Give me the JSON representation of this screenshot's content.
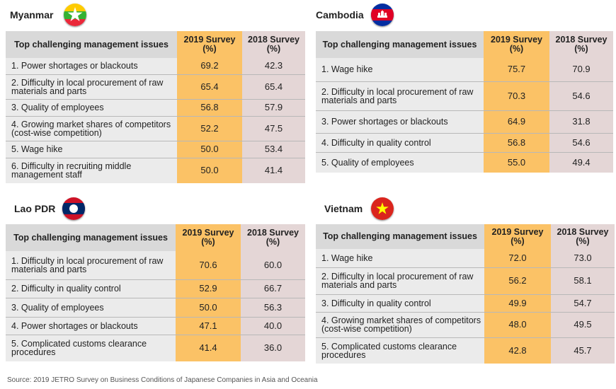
{
  "headers": {
    "issue": "Top challenging management issues",
    "y2019": "2019 Survey\n(%)",
    "y2018": "2018 Survey\n(%)"
  },
  "source": "Source: 2019 JETRO Survey on Business Conditions of Japanese Companies in Asia and Oceania",
  "flag_colors": {
    "myanmar": [
      "#fecb00",
      "#34b233",
      "#ea2839",
      "#ffffff"
    ],
    "cambodia": [
      "#032ea1",
      "#e00025",
      "#ffffff"
    ],
    "laos": [
      "#ce1126",
      "#002868",
      "#ffffff"
    ],
    "vietnam": [
      "#da251d",
      "#ffff00"
    ]
  },
  "chart_data": [
    {
      "type": "table",
      "title": "Myanmar",
      "columns": [
        "Top challenging management issues",
        "2019 Survey (%)",
        "2018 Survey (%)"
      ],
      "rows": [
        [
          "1. Power shortages or blackouts",
          "69.2",
          "42.3"
        ],
        [
          "2. Difficulty in local procurement of raw materials and parts",
          "65.4",
          "65.4"
        ],
        [
          "3. Quality of employees",
          "56.8",
          "57.9"
        ],
        [
          "4. Growing market shares of competitors (cost-wise competition)",
          "52.2",
          "47.5"
        ],
        [
          "5. Wage hike",
          "50.0",
          "53.4"
        ],
        [
          "6. Difficulty in recruiting middle management staff",
          "50.0",
          "41.4"
        ]
      ]
    },
    {
      "type": "table",
      "title": "Cambodia",
      "columns": [
        "Top challenging management issues",
        "2019 Survey (%)",
        "2018 Survey (%)"
      ],
      "rows": [
        [
          "1. Wage hike",
          "75.7",
          "70.9"
        ],
        [
          "2. Difficulty in local procurement of raw materials and parts",
          "70.3",
          "54.6"
        ],
        [
          "3. Power shortages or blackouts",
          "64.9",
          "31.8"
        ],
        [
          "4. Difficulty in quality control",
          "56.8",
          "54.6"
        ],
        [
          "5. Quality of employees",
          "55.0",
          "49.4"
        ]
      ]
    },
    {
      "type": "table",
      "title": "Lao PDR",
      "columns": [
        "Top challenging management issues",
        "2019 Survey (%)",
        "2018 Survey (%)"
      ],
      "rows": [
        [
          "1. Difficulty in local procurement of raw materials and parts",
          "70.6",
          "60.0"
        ],
        [
          "2. Difficulty in quality control",
          "52.9",
          "66.7"
        ],
        [
          "3. Quality of employees",
          "50.0",
          "56.3"
        ],
        [
          "4. Power shortages or blackouts",
          "47.1",
          "40.0"
        ],
        [
          "5. Complicated customs clearance procedures",
          "41.4",
          "36.0"
        ]
      ]
    },
    {
      "type": "table",
      "title": "Vietnam",
      "columns": [
        "Top challenging management issues",
        "2019 Survey (%)",
        "2018 Survey (%)"
      ],
      "rows": [
        [
          "1. Wage hike",
          "72.0",
          "73.0"
        ],
        [
          "2. Difficulty in local procurement of raw materials and parts",
          "56.2",
          "58.1"
        ],
        [
          "3. Difficulty in quality control",
          "49.9",
          "54.7"
        ],
        [
          "4. Growing market shares of competitors (cost-wise competition)",
          "48.0",
          "49.5"
        ],
        [
          "5. Complicated customs clearance procedures",
          "42.8",
          "45.7"
        ]
      ]
    }
  ]
}
